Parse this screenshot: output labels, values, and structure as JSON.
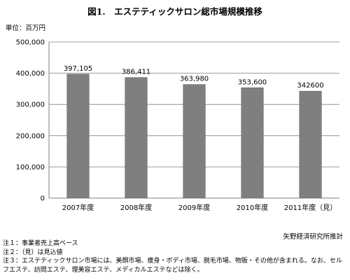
{
  "title": "図1.　エステティックサロン総市場規模推移",
  "unit_label": "単位：百万円",
  "source": "矢野経済研究所推計",
  "notes": [
    "注１：事業者売上高ベース",
    "注２：（見）は見込値",
    "注３：エステティックサロン市場には、美顔市場、痩身・ボディ市場、脱毛市場、物販・その他が含まれる。なお、セルフエステ、訪問エステ、理美容エステ、メディカルエステなどは除く。"
  ],
  "colors": {
    "bar": "#7f7f7f",
    "bar_edge": "#6a6a6a",
    "axis": "#808080",
    "gridline": "#808080"
  },
  "chart_data": {
    "type": "bar",
    "categories": [
      "2007年度",
      "2008年度",
      "2009年度",
      "2010年度",
      "2011年度（見）"
    ],
    "values": [
      397105,
      386411,
      363980,
      353600,
      342600
    ],
    "data_labels": [
      "397,105",
      "386,411",
      "363,980",
      "353,600",
      "342600"
    ],
    "y_ticks": [
      "0",
      "100,000",
      "200,000",
      "300,000",
      "400,000",
      "500,000"
    ],
    "ylim": [
      0,
      500000
    ],
    "grid": true,
    "legend": false,
    "title": "図1.　エステティックサロン総市場規模推移",
    "ylabel": "単位：百万円",
    "xlabel": ""
  }
}
